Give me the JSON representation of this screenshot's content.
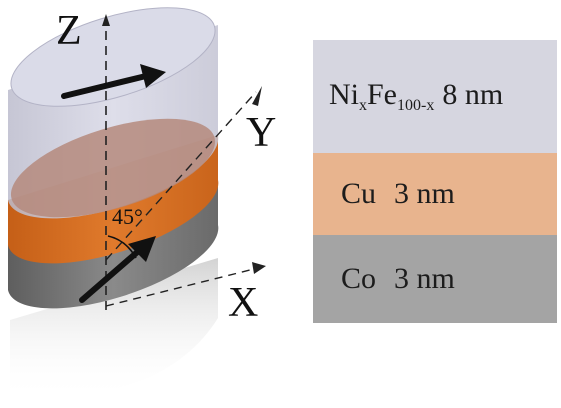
{
  "axes": {
    "z_label": "Z",
    "y_label": "Y",
    "x_label": "X",
    "angle_label": "45°"
  },
  "layers": [
    {
      "material": "Ni",
      "sub_1": "x",
      "material_2": "Fe",
      "sub_2": "100-x",
      "thickness": "8 nm",
      "color": "#d6d6e0"
    },
    {
      "material": "Cu",
      "thickness": "3 nm",
      "color": "#e8b48e"
    },
    {
      "material": "Co",
      "thickness": "3 nm",
      "color": "#a4a4a4"
    }
  ],
  "cylinder_colors": {
    "top_layer": "#c9c9db",
    "middle_layer": "#d26a1e",
    "bottom_layer": "#707070"
  }
}
